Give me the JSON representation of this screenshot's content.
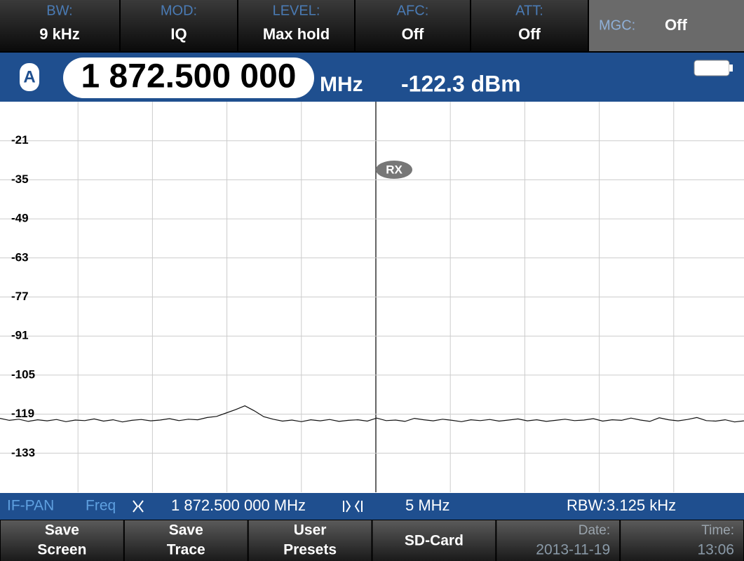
{
  "top_bar": [
    {
      "label": "BW:",
      "value": "9 kHz"
    },
    {
      "label": "MOD:",
      "value": "IQ"
    },
    {
      "label": "LEVEL:",
      "value": "Max hold"
    },
    {
      "label": "AFC:",
      "value": "Off"
    },
    {
      "label": "ATT:",
      "value": "Off"
    },
    {
      "label": "MGC:",
      "value": "Off"
    }
  ],
  "readout": {
    "channel": "A",
    "frequency": "1 872.500 000",
    "unit": "MHz",
    "level": "-122.3 dBm"
  },
  "spectrum": {
    "type": "line",
    "ylim": [
      -147,
      -7
    ],
    "yticks": [
      -21,
      -35,
      -49,
      -63,
      -77,
      -91,
      -105,
      -119,
      -133
    ],
    "grid": true,
    "marker": "RX",
    "trace": {
      "color": "#111111",
      "values": [
        -120.5,
        -121.2,
        -120.8,
        -121.6,
        -121.0,
        -121.4,
        -120.9,
        -121.7,
        -121.1,
        -121.3,
        -120.7,
        -121.5,
        -121.0,
        -121.8,
        -121.2,
        -120.9,
        -121.4,
        -121.1,
        -120.6,
        -121.3,
        -120.8,
        -121.0,
        -120.2,
        -119.8,
        -118.6,
        -117.4,
        -116.0,
        -117.8,
        -119.9,
        -120.8,
        -121.5,
        -121.1,
        -121.7,
        -121.0,
        -121.4,
        -120.9,
        -121.6,
        -121.2,
        -121.0,
        -121.5,
        -120.4,
        -121.3,
        -121.1,
        -121.6,
        -120.5,
        -121.0,
        -121.4,
        -120.8,
        -121.2,
        -121.7,
        -121.0,
        -121.3,
        -120.9,
        -121.5,
        -121.1,
        -120.7,
        -121.4,
        -121.0,
        -121.6,
        -121.2,
        -120.8,
        -121.3,
        -121.1,
        -120.6,
        -121.5,
        -121.0,
        -121.2,
        -120.4,
        -121.1,
        -121.6,
        -120.3,
        -121.0,
        -121.4,
        -120.9,
        -120.2,
        -121.3,
        -121.5,
        -121.0,
        -121.8,
        -121.4
      ]
    }
  },
  "status_bar": {
    "mode": "IF-PAN",
    "field": "Freq",
    "center": "1 872.500 000 MHz",
    "span": "5 MHz",
    "rbw": "RBW:3.125 kHz"
  },
  "softkeys": [
    {
      "lines": [
        "Save",
        "Screen"
      ]
    },
    {
      "lines": [
        "Save",
        "Trace"
      ]
    },
    {
      "lines": [
        "User",
        "Presets"
      ]
    },
    {
      "lines": [
        "SD-Card"
      ]
    },
    {
      "lines": [
        "Date:",
        "2013-11-19"
      ]
    },
    {
      "lines": [
        "Time:",
        "13:06"
      ]
    }
  ]
}
